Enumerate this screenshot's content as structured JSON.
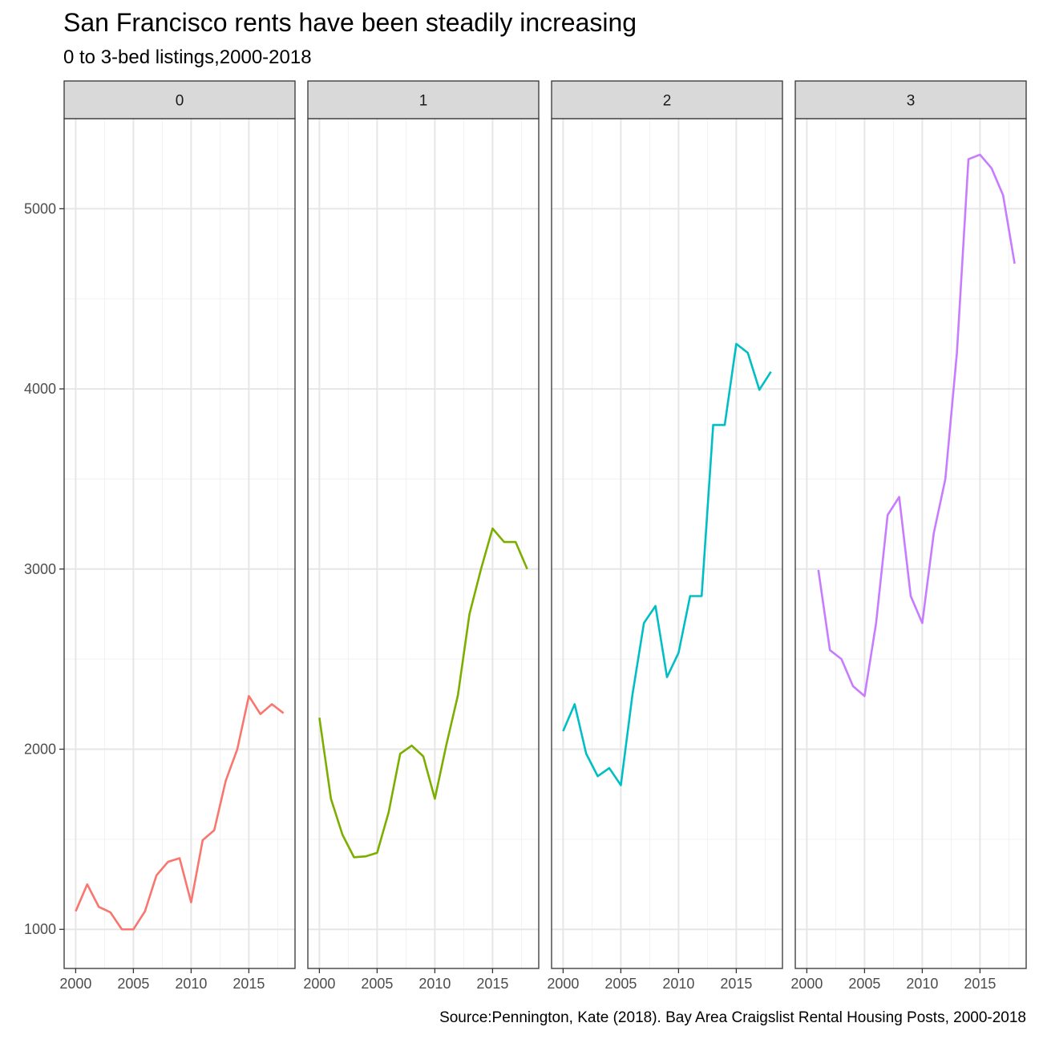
{
  "chart_data": {
    "type": "line",
    "title": "San Francisco rents have been steadily increasing",
    "subtitle": "0 to 3-bed listings,2000-2018",
    "caption": "Source:Pennington, Kate (2018). Bay Area Craigslist Rental Housing Posts, 2000-2018",
    "xlabel": "",
    "ylabel": "",
    "xlim": [
      1999,
      2019
    ],
    "ylim": [
      783,
      5500
    ],
    "x_ticks": [
      2000,
      2005,
      2010,
      2015
    ],
    "y_ticks": [
      1000,
      2000,
      3000,
      4000,
      5000
    ],
    "grid": true,
    "legend": "none",
    "facets": [
      {
        "label": "0",
        "color": "#F8766D",
        "x": [
          2000,
          2001,
          2002,
          2003,
          2004,
          2005,
          2006,
          2007,
          2008,
          2009,
          2010,
          2011,
          2012,
          2013,
          2014,
          2015,
          2016,
          2017,
          2018
        ],
        "values": [
          1100,
          1250,
          1125,
          1095,
          1000,
          1000,
          1100,
          1300,
          1375,
          1395,
          1150,
          1495,
          1550,
          1825,
          2000,
          2295,
          2195,
          2250,
          2200
        ]
      },
      {
        "label": "1",
        "color": "#7CAE00",
        "x": [
          2000,
          2001,
          2002,
          2003,
          2004,
          2005,
          2006,
          2007,
          2008,
          2009,
          2010,
          2011,
          2012,
          2013,
          2014,
          2015,
          2016,
          2017,
          2018
        ],
        "values": [
          2175,
          1725,
          1525,
          1400,
          1405,
          1425,
          1650,
          1975,
          2020,
          1960,
          1725,
          2025,
          2300,
          2750,
          3000,
          3225,
          3150,
          3150,
          3000
        ]
      },
      {
        "label": "2",
        "color": "#00BFC4",
        "x": [
          2000,
          2001,
          2002,
          2003,
          2004,
          2005,
          2006,
          2007,
          2008,
          2009,
          2010,
          2011,
          2012,
          2013,
          2014,
          2015,
          2016,
          2017,
          2018
        ],
        "values": [
          2100,
          2250,
          1975,
          1850,
          1895,
          1800,
          2300,
          2700,
          2795,
          2400,
          2535,
          2850,
          2850,
          3800,
          3800,
          4250,
          4200,
          3995,
          4095
        ]
      },
      {
        "label": "3",
        "color": "#C77CFF",
        "x": [
          2001,
          2002,
          2003,
          2004,
          2005,
          2006,
          2007,
          2008,
          2009,
          2010,
          2011,
          2012,
          2013,
          2014,
          2015,
          2016,
          2017,
          2018
        ],
        "values": [
          2995,
          2550,
          2500,
          2350,
          2295,
          2700,
          3300,
          3400,
          2850,
          2700,
          3200,
          3500,
          4200,
          5275,
          5300,
          5225,
          5075,
          4695
        ]
      }
    ]
  }
}
